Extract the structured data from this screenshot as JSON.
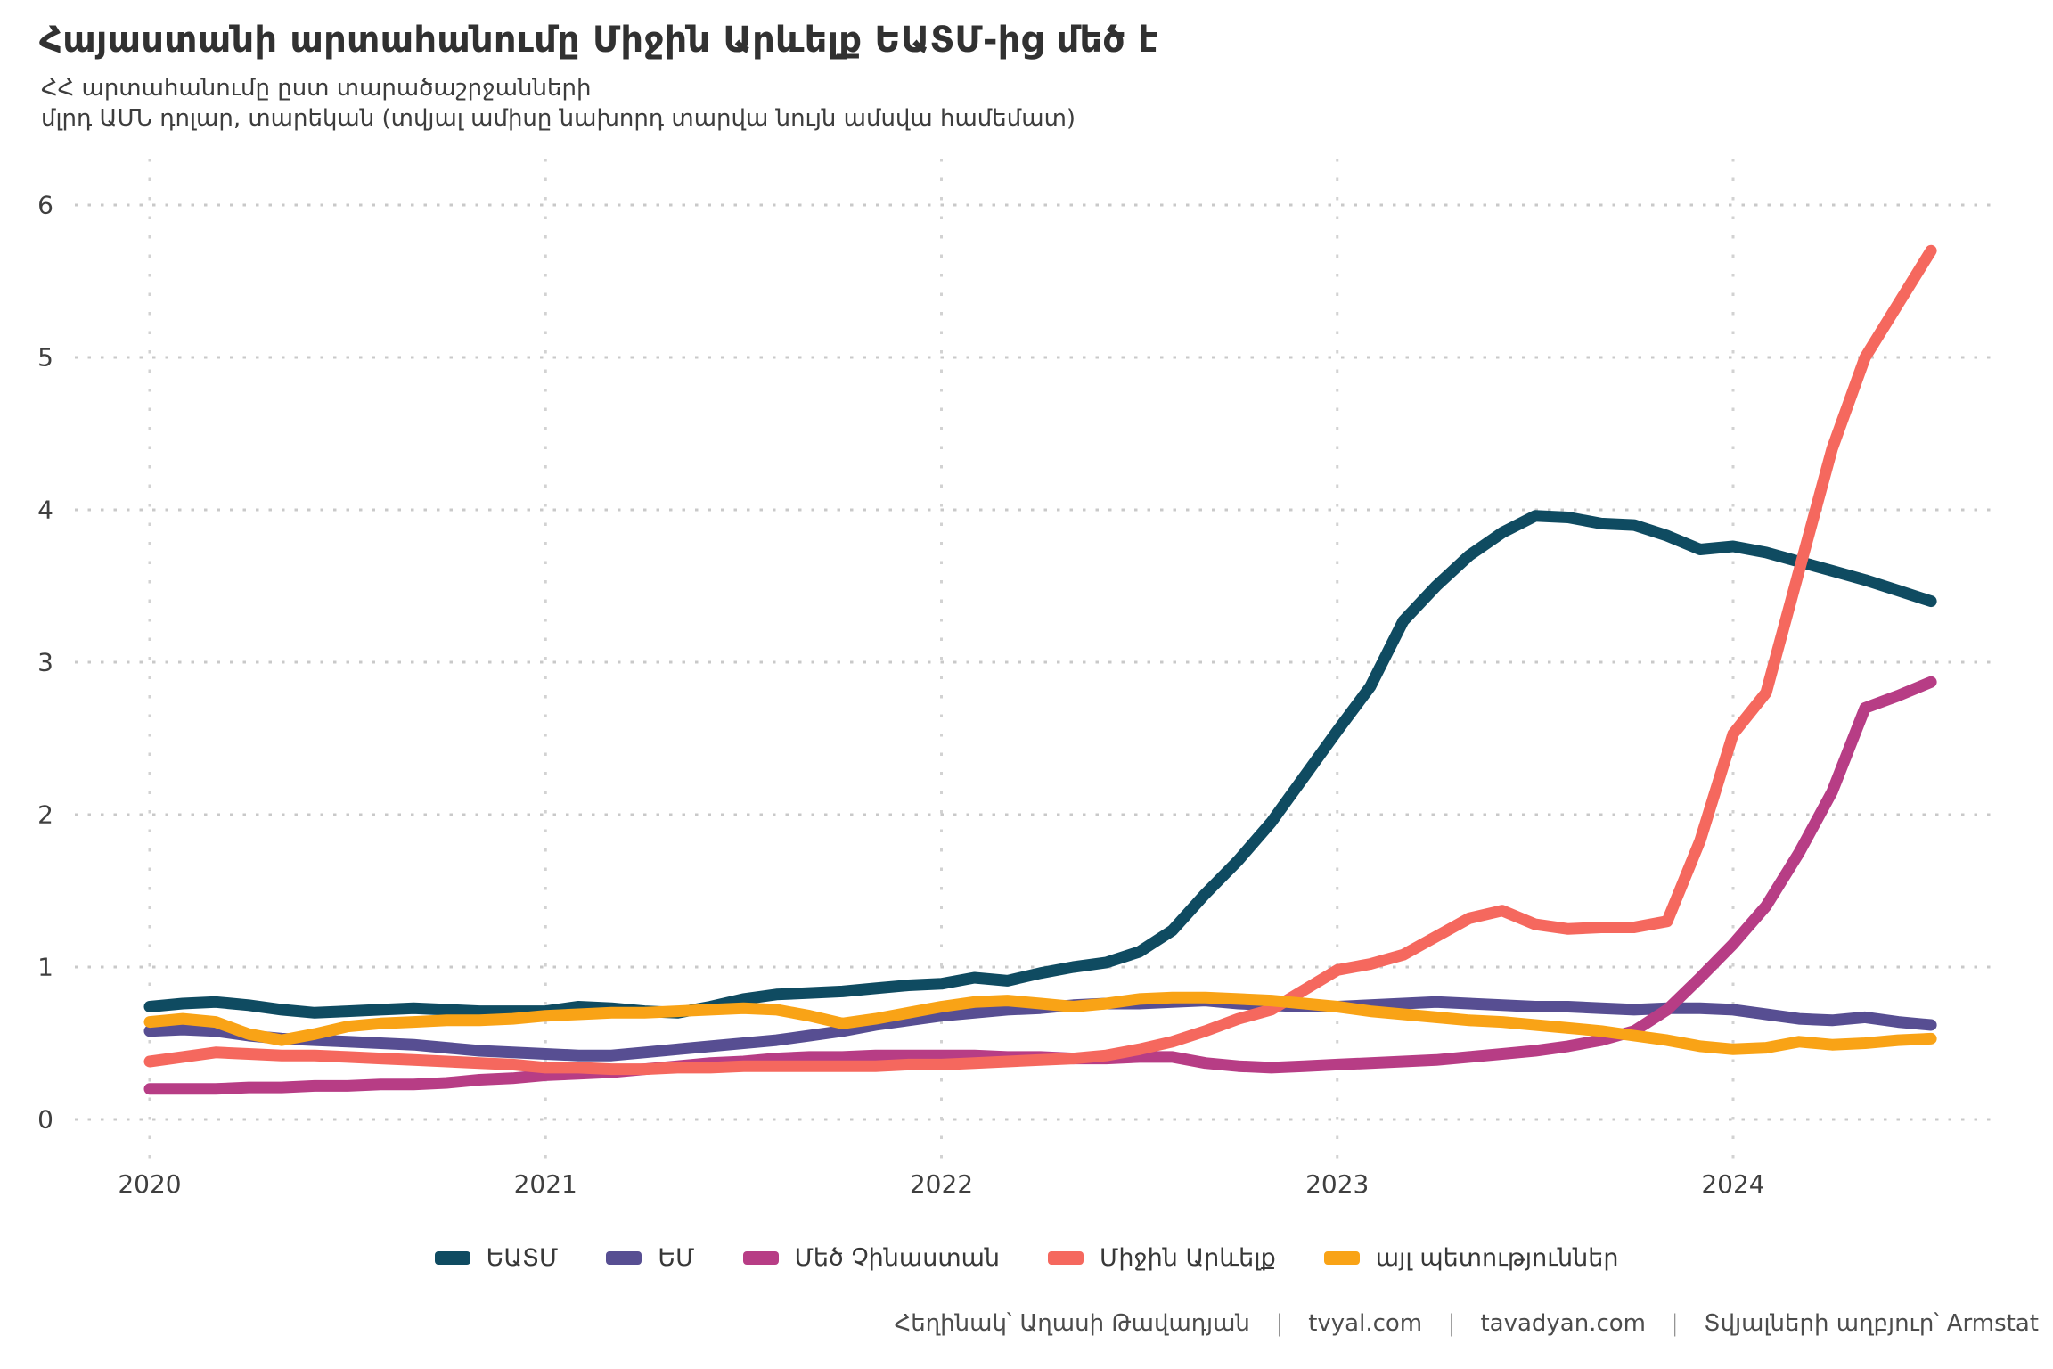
{
  "header": {
    "title": "Հայաստանի արտահանումը Միջին Արևելք ԵԱՏՄ-ից մեծ է",
    "subtitle_line1": "ՀՀ արտահանումը ըստ տարածաշրջանների",
    "subtitle_line2": "մլրդ ԱՄՆ դոլար, տարեկան (տվյալ ամիսը նախորդ տարվա նույն ամսվա համեմատ)"
  },
  "footer": {
    "author": "Հեղինակ՝ Աղասի Թավադյան",
    "site1": "tvyal.com",
    "site2": "tavadyan.com",
    "source": "Տվյալների աղբյուր՝ Armstat",
    "divider": "|"
  },
  "chart_data": {
    "type": "line",
    "title": "Հայաստանի արտահանումը Միջին Արևելք ԵԱՏՄ-ից մեծ է",
    "subtitle": "ՀՀ արտահանումը ըստ տարածաշրջանների",
    "units": "մլրդ ԱՄՆ դոլար, տարեկան",
    "x_start_year": 2020,
    "x_end_label": "2024-07",
    "points_per_year": 12,
    "x_ticks": [
      "2020",
      "2021",
      "2022",
      "2023",
      "2024"
    ],
    "y_ticks": [
      "0",
      "1",
      "2",
      "3",
      "4",
      "5",
      "6"
    ],
    "ylim": [
      0,
      6.3
    ],
    "grid": "dotted",
    "legend_position": "bottom",
    "series": [
      {
        "id": "eaeu",
        "name": "ԵԱՏՄ",
        "color": "#0f4b61",
        "values": [
          0.74,
          0.76,
          0.77,
          0.75,
          0.72,
          0.7,
          0.71,
          0.72,
          0.73,
          0.72,
          0.71,
          0.71,
          0.71,
          0.74,
          0.73,
          0.71,
          0.7,
          0.74,
          0.79,
          0.82,
          0.83,
          0.84,
          0.86,
          0.88,
          0.89,
          0.93,
          0.91,
          0.96,
          1.0,
          1.03,
          1.1,
          1.24,
          1.48,
          1.7,
          1.95,
          2.25,
          2.55,
          2.84,
          3.27,
          3.5,
          3.7,
          3.85,
          3.96,
          3.95,
          3.91,
          3.9,
          3.83,
          3.74,
          3.76,
          3.72,
          3.66,
          3.6,
          3.54,
          3.47,
          3.4
        ]
      },
      {
        "id": "eu",
        "name": "ԵՄ",
        "color": "#574e92",
        "values": [
          0.58,
          0.59,
          0.58,
          0.55,
          0.53,
          0.52,
          0.51,
          0.5,
          0.49,
          0.47,
          0.45,
          0.44,
          0.43,
          0.42,
          0.42,
          0.44,
          0.46,
          0.48,
          0.5,
          0.52,
          0.55,
          0.58,
          0.62,
          0.65,
          0.68,
          0.7,
          0.72,
          0.73,
          0.75,
          0.76,
          0.76,
          0.77,
          0.78,
          0.76,
          0.75,
          0.74,
          0.74,
          0.75,
          0.76,
          0.77,
          0.76,
          0.75,
          0.74,
          0.74,
          0.73,
          0.72,
          0.73,
          0.73,
          0.72,
          0.69,
          0.66,
          0.65,
          0.67,
          0.64,
          0.62
        ]
      },
      {
        "id": "greater-china",
        "name": "Մեծ Չինաստան",
        "color": "#b73d85",
        "values": [
          0.2,
          0.2,
          0.2,
          0.21,
          0.21,
          0.22,
          0.22,
          0.23,
          0.23,
          0.24,
          0.26,
          0.27,
          0.29,
          0.3,
          0.31,
          0.33,
          0.35,
          0.37,
          0.38,
          0.4,
          0.41,
          0.41,
          0.42,
          0.42,
          0.42,
          0.42,
          0.41,
          0.41,
          0.4,
          0.4,
          0.41,
          0.41,
          0.37,
          0.35,
          0.34,
          0.35,
          0.36,
          0.37,
          0.38,
          0.39,
          0.41,
          0.43,
          0.45,
          0.48,
          0.52,
          0.58,
          0.72,
          0.93,
          1.15,
          1.4,
          1.75,
          2.15,
          2.7,
          2.78,
          2.87
        ]
      },
      {
        "id": "middle-east",
        "name": "Միջին Արևելք",
        "color": "#f5685e",
        "values": [
          0.38,
          0.41,
          0.44,
          0.43,
          0.42,
          0.42,
          0.41,
          0.4,
          0.39,
          0.38,
          0.37,
          0.36,
          0.34,
          0.34,
          0.33,
          0.33,
          0.34,
          0.34,
          0.35,
          0.35,
          0.35,
          0.35,
          0.35,
          0.36,
          0.36,
          0.37,
          0.38,
          0.39,
          0.4,
          0.42,
          0.46,
          0.51,
          0.58,
          0.66,
          0.72,
          0.85,
          0.98,
          1.02,
          1.08,
          1.2,
          1.32,
          1.37,
          1.28,
          1.25,
          1.26,
          1.26,
          1.3,
          1.83,
          2.53,
          2.8,
          3.6,
          4.4,
          5.0,
          5.35,
          5.7
        ]
      },
      {
        "id": "other-states",
        "name": "այլ պետություններ",
        "color": "#f9a316",
        "values": [
          0.64,
          0.66,
          0.64,
          0.56,
          0.52,
          0.56,
          0.61,
          0.63,
          0.64,
          0.65,
          0.65,
          0.66,
          0.68,
          0.69,
          0.7,
          0.7,
          0.71,
          0.72,
          0.73,
          0.72,
          0.68,
          0.63,
          0.66,
          0.7,
          0.74,
          0.77,
          0.78,
          0.76,
          0.74,
          0.76,
          0.79,
          0.8,
          0.8,
          0.79,
          0.78,
          0.76,
          0.74,
          0.71,
          0.69,
          0.67,
          0.65,
          0.64,
          0.62,
          0.6,
          0.58,
          0.55,
          0.52,
          0.48,
          0.46,
          0.47,
          0.51,
          0.49,
          0.5,
          0.52,
          0.53
        ]
      }
    ]
  }
}
